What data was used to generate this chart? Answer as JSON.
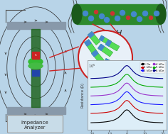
{
  "bg_color": "#b8d4e8",
  "plot_colors": [
    "#000000",
    "#cc0000",
    "#1a1aff",
    "#9933cc",
    "#00aa00",
    "#000088"
  ],
  "plot_labels": [
    "0 Oe",
    "2 kOe",
    "3 kOe",
    "4 kOe",
    "5 kOe",
    "6 kOe"
  ],
  "plate_color": "#8899aa",
  "fieldline_color": "#333333",
  "red_box_color": "#cc2222",
  "blue_box_color": "#2244aa",
  "green_sample_color": "#33bb33",
  "green_coil_color": "#226622",
  "wire_color": "#555555",
  "imp_box_color": "#c8dce8",
  "imp_border_color": "#999999",
  "tube_color": "#2d8a2d",
  "tube_dark_color": "#1a5a1a",
  "circle_bg": "#e8f0f8",
  "circle_border": "#cc2222",
  "flake_green": "#55dd55",
  "flake_blue": "#4488cc",
  "graph_bg": "#ddeef8",
  "graph_border": "#aaaaaa"
}
